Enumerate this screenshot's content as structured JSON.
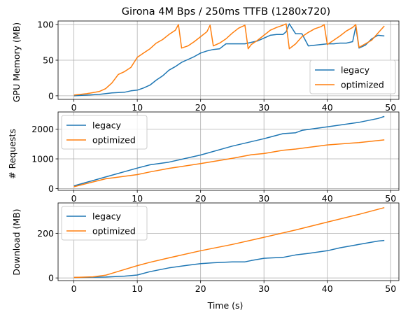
{
  "chart_data": [
    {
      "type": "line",
      "title": "Girona 4M Bps / 250ms TTFB (1280x720)",
      "xlabel": "",
      "ylabel": "GPU Memory (MB)",
      "xlim": [
        -2.5,
        51.3
      ],
      "ylim": [
        -5,
        105
      ],
      "xticks": [
        0,
        10,
        20,
        30,
        40,
        50
      ],
      "yticks": [
        0,
        50,
        100
      ],
      "grid": true,
      "legend_position": "lower-right",
      "series": [
        {
          "name": "legacy",
          "color": "#1f77b4",
          "x": [
            0,
            2,
            4,
            6,
            8,
            9,
            10,
            11,
            12,
            13,
            14,
            15,
            16,
            17,
            18,
            19,
            20,
            21,
            22,
            23,
            24,
            25,
            26,
            27,
            28,
            29,
            30,
            31,
            32,
            33,
            33.5,
            34,
            35,
            36,
            37,
            38,
            39,
            40,
            41,
            42,
            43,
            44,
            44.5,
            45,
            46,
            47,
            48,
            49
          ],
          "y": [
            0,
            1,
            2,
            4,
            5,
            7,
            8,
            11,
            15,
            22,
            28,
            36,
            41,
            47,
            51,
            55,
            60,
            63,
            65,
            66,
            73,
            73,
            73,
            73,
            75,
            77,
            81,
            85,
            86,
            86,
            90,
            101,
            87,
            87,
            70,
            71,
            72,
            73,
            73,
            74,
            74,
            76,
            97,
            67,
            71,
            80,
            85,
            84
          ]
        },
        {
          "name": "optimized",
          "color": "#ff7f0e",
          "x": [
            0,
            2,
            4,
            5,
            6,
            7,
            8,
            9,
            10,
            11,
            12,
            13,
            14,
            15,
            16,
            16.5,
            17,
            18,
            19,
            20,
            21,
            21.5,
            22,
            23,
            24,
            25,
            26,
            27,
            27.5,
            28,
            29,
            30,
            31,
            32,
            33,
            33.5,
            34,
            35,
            36,
            37,
            38,
            39,
            39.5,
            40,
            41,
            42,
            43,
            44,
            44.5,
            45,
            46,
            47,
            48,
            49
          ],
          "y": [
            1,
            3,
            6,
            10,
            18,
            30,
            34,
            40,
            54,
            60,
            66,
            74,
            79,
            86,
            92,
            100,
            67,
            70,
            76,
            83,
            90,
            99,
            70,
            74,
            80,
            88,
            95,
            99,
            66,
            72,
            78,
            85,
            92,
            96,
            99,
            101,
            66,
            73,
            83,
            89,
            94,
            97,
            100,
            72,
            78,
            84,
            91,
            96,
            100,
            68,
            73,
            78,
            88,
            98
          ]
        }
      ]
    },
    {
      "type": "line",
      "title": "",
      "xlabel": "",
      "ylabel": "# Requests",
      "xlim": [
        -2.5,
        51.3
      ],
      "ylim": [
        -60,
        2580
      ],
      "xticks": [
        0,
        10,
        20,
        30,
        40,
        50
      ],
      "yticks": [
        0,
        1000,
        2000
      ],
      "grid": true,
      "legend_position": "upper-left",
      "series": [
        {
          "name": "legacy",
          "color": "#1f77b4",
          "x": [
            0,
            5,
            10,
            12,
            15,
            20,
            25,
            30,
            33,
            35,
            36,
            40,
            45,
            48,
            49
          ],
          "y": [
            90,
            390,
            690,
            800,
            890,
            1130,
            1430,
            1680,
            1850,
            1880,
            1960,
            2080,
            2230,
            2360,
            2430
          ]
        },
        {
          "name": "optimized",
          "color": "#ff7f0e",
          "x": [
            0,
            5,
            10,
            12,
            15,
            20,
            25,
            28,
            30,
            33,
            35,
            40,
            45,
            49
          ],
          "y": [
            60,
            330,
            470,
            560,
            680,
            840,
            1020,
            1140,
            1180,
            1290,
            1330,
            1470,
            1550,
            1640
          ]
        }
      ]
    },
    {
      "type": "line",
      "title": "",
      "xlabel": "Time (s)",
      "ylabel": "Download (MB)",
      "xlim": [
        -2.5,
        51.3
      ],
      "ylim": [
        -12,
        336
      ],
      "xticks": [
        0,
        10,
        20,
        30,
        40,
        50
      ],
      "yticks": [
        0,
        200
      ],
      "grid": true,
      "legend_position": "upper-left",
      "series": [
        {
          "name": "legacy",
          "color": "#1f77b4",
          "x": [
            0,
            5,
            8,
            10,
            12,
            15,
            18,
            20,
            22,
            25,
            27,
            28,
            30,
            33,
            35,
            37,
            40,
            42,
            45,
            48,
            49
          ],
          "y": [
            2,
            4,
            8,
            13,
            28,
            45,
            57,
            64,
            68,
            72,
            72,
            78,
            88,
            92,
            103,
            110,
            122,
            135,
            150,
            165,
            168
          ]
        },
        {
          "name": "optimized",
          "color": "#ff7f0e",
          "x": [
            0,
            3,
            5,
            10,
            12,
            15,
            20,
            25,
            30,
            35,
            40,
            45,
            49
          ],
          "y": [
            2,
            5,
            12,
            55,
            70,
            90,
            122,
            150,
            182,
            215,
            250,
            285,
            315
          ]
        }
      ]
    }
  ]
}
